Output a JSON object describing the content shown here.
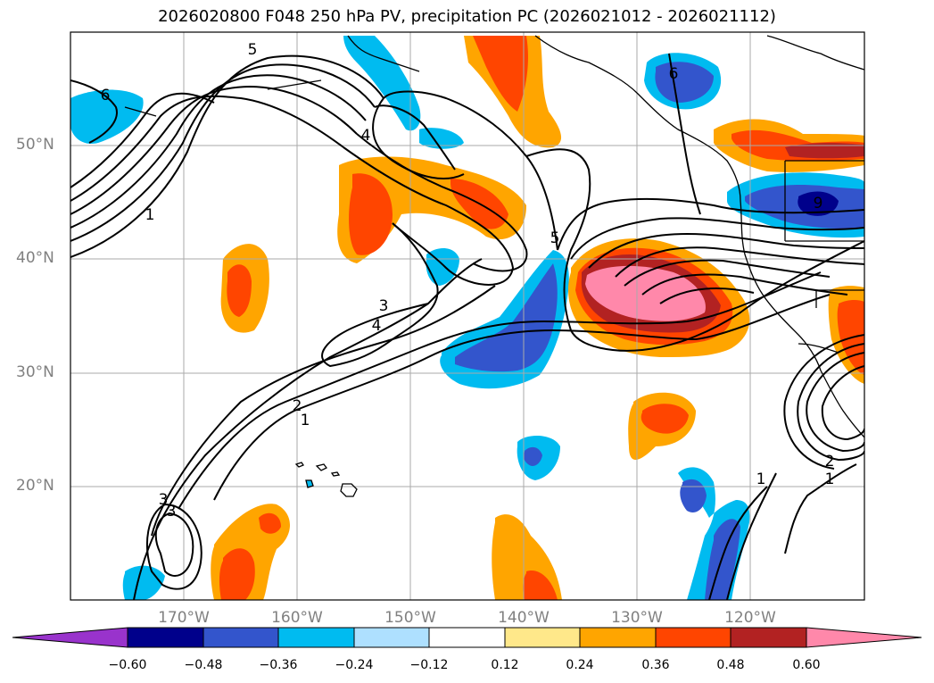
{
  "title": "2026020800 F048 250 hPa PV, precipitation PC (2026021012 - 2026021112)",
  "map": {
    "lat_labels": [
      "50°N",
      "40°N",
      "30°N",
      "20°N"
    ],
    "lon_labels": [
      "170°W",
      "160°W",
      "150°W",
      "140°W",
      "130°W",
      "120°W"
    ],
    "contour_labels": [
      "6",
      "5",
      "4",
      "1",
      "3",
      "4",
      "2",
      "1",
      "5",
      "6",
      "9",
      "1",
      "2",
      "1",
      "3",
      "3"
    ]
  },
  "colorbar": {
    "ticks": [
      "−0.60",
      "−0.48",
      "−0.36",
      "−0.24",
      "−0.12",
      "0.12",
      "0.24",
      "0.36",
      "0.48",
      "0.60"
    ],
    "colors": [
      "#9933cc",
      "#00008b",
      "#3355cc",
      "#00bbf0",
      "#aee0ff",
      "#ffffff",
      "#ffe88a",
      "#ffa500",
      "#ff4500",
      "#b22222",
      "#ff88aa"
    ]
  }
}
